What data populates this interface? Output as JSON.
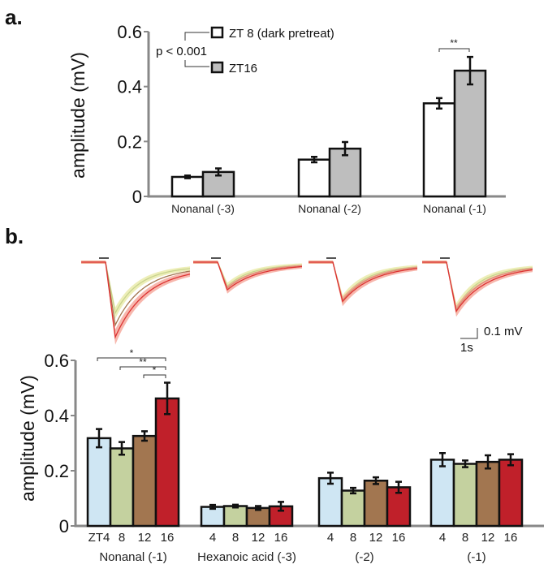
{
  "chart_data": [
    {
      "panel": "a.",
      "type": "bar",
      "ylabel": "amplitude (mV)",
      "ylim": [
        0,
        0.6
      ],
      "yticks": [
        "0",
        "0.2",
        "0.4",
        "0.6"
      ],
      "categories": [
        "Nonanal (-3)",
        "Nonanal (-2)",
        "Nonanal (-1)"
      ],
      "series": [
        {
          "name": "ZT 8 (dark pretreat)",
          "color": "#ffffff",
          "values": [
            0.071,
            0.134,
            0.339
          ],
          "errors": [
            0.005,
            0.01,
            0.019
          ]
        },
        {
          "name": "ZT16",
          "color": "#bebebe",
          "values": [
            0.089,
            0.174,
            0.458
          ],
          "errors": [
            0.013,
            0.024,
            0.05
          ]
        }
      ],
      "annotations": {
        "legend_p": "p < 0.001",
        "significance": [
          {
            "category": "Nonanal (-1)",
            "label": "**"
          }
        ]
      }
    },
    {
      "panel": "b.",
      "type": "bar",
      "ylabel": "amplitude (mV)",
      "ylim": [
        0,
        0.6
      ],
      "yticks": [
        "0",
        "0.2",
        "0.4",
        "0.6"
      ],
      "groups": [
        {
          "label": "Nonanal (-1)",
          "ticks": [
            "ZT4",
            "8",
            "12",
            "16"
          ],
          "values": [
            0.318,
            0.281,
            0.326,
            0.462
          ],
          "errors": [
            0.033,
            0.023,
            0.017,
            0.057
          ]
        },
        {
          "label": "Hexanoic acid (-3)",
          "ticks": [
            "4",
            "8",
            "12",
            "16"
          ],
          "values": [
            0.069,
            0.072,
            0.065,
            0.071
          ],
          "errors": [
            0.007,
            0.005,
            0.007,
            0.016
          ]
        },
        {
          "label": "(-2)",
          "ticks": [
            "4",
            "8",
            "12",
            "16"
          ],
          "values": [
            0.173,
            0.128,
            0.164,
            0.14
          ],
          "errors": [
            0.02,
            0.01,
            0.012,
            0.02
          ]
        },
        {
          "label": "(-1)",
          "ticks": [
            "4",
            "8",
            "12",
            "16"
          ],
          "values": [
            0.24,
            0.225,
            0.232,
            0.24
          ],
          "errors": [
            0.024,
            0.012,
            0.024,
            0.02
          ]
        }
      ],
      "colors": [
        "#cfe6f3",
        "#c4d19f",
        "#a27650",
        "#c0202a"
      ],
      "significance": [
        {
          "from": "ZT4",
          "to": "16",
          "label": "*"
        },
        {
          "from": "8",
          "to": "16",
          "label": "**"
        },
        {
          "from": "12",
          "to": "16",
          "label": "*"
        }
      ],
      "traces": {
        "scale_voltage": "0.1 mV",
        "scale_time": "1s",
        "panels": 4
      }
    }
  ]
}
